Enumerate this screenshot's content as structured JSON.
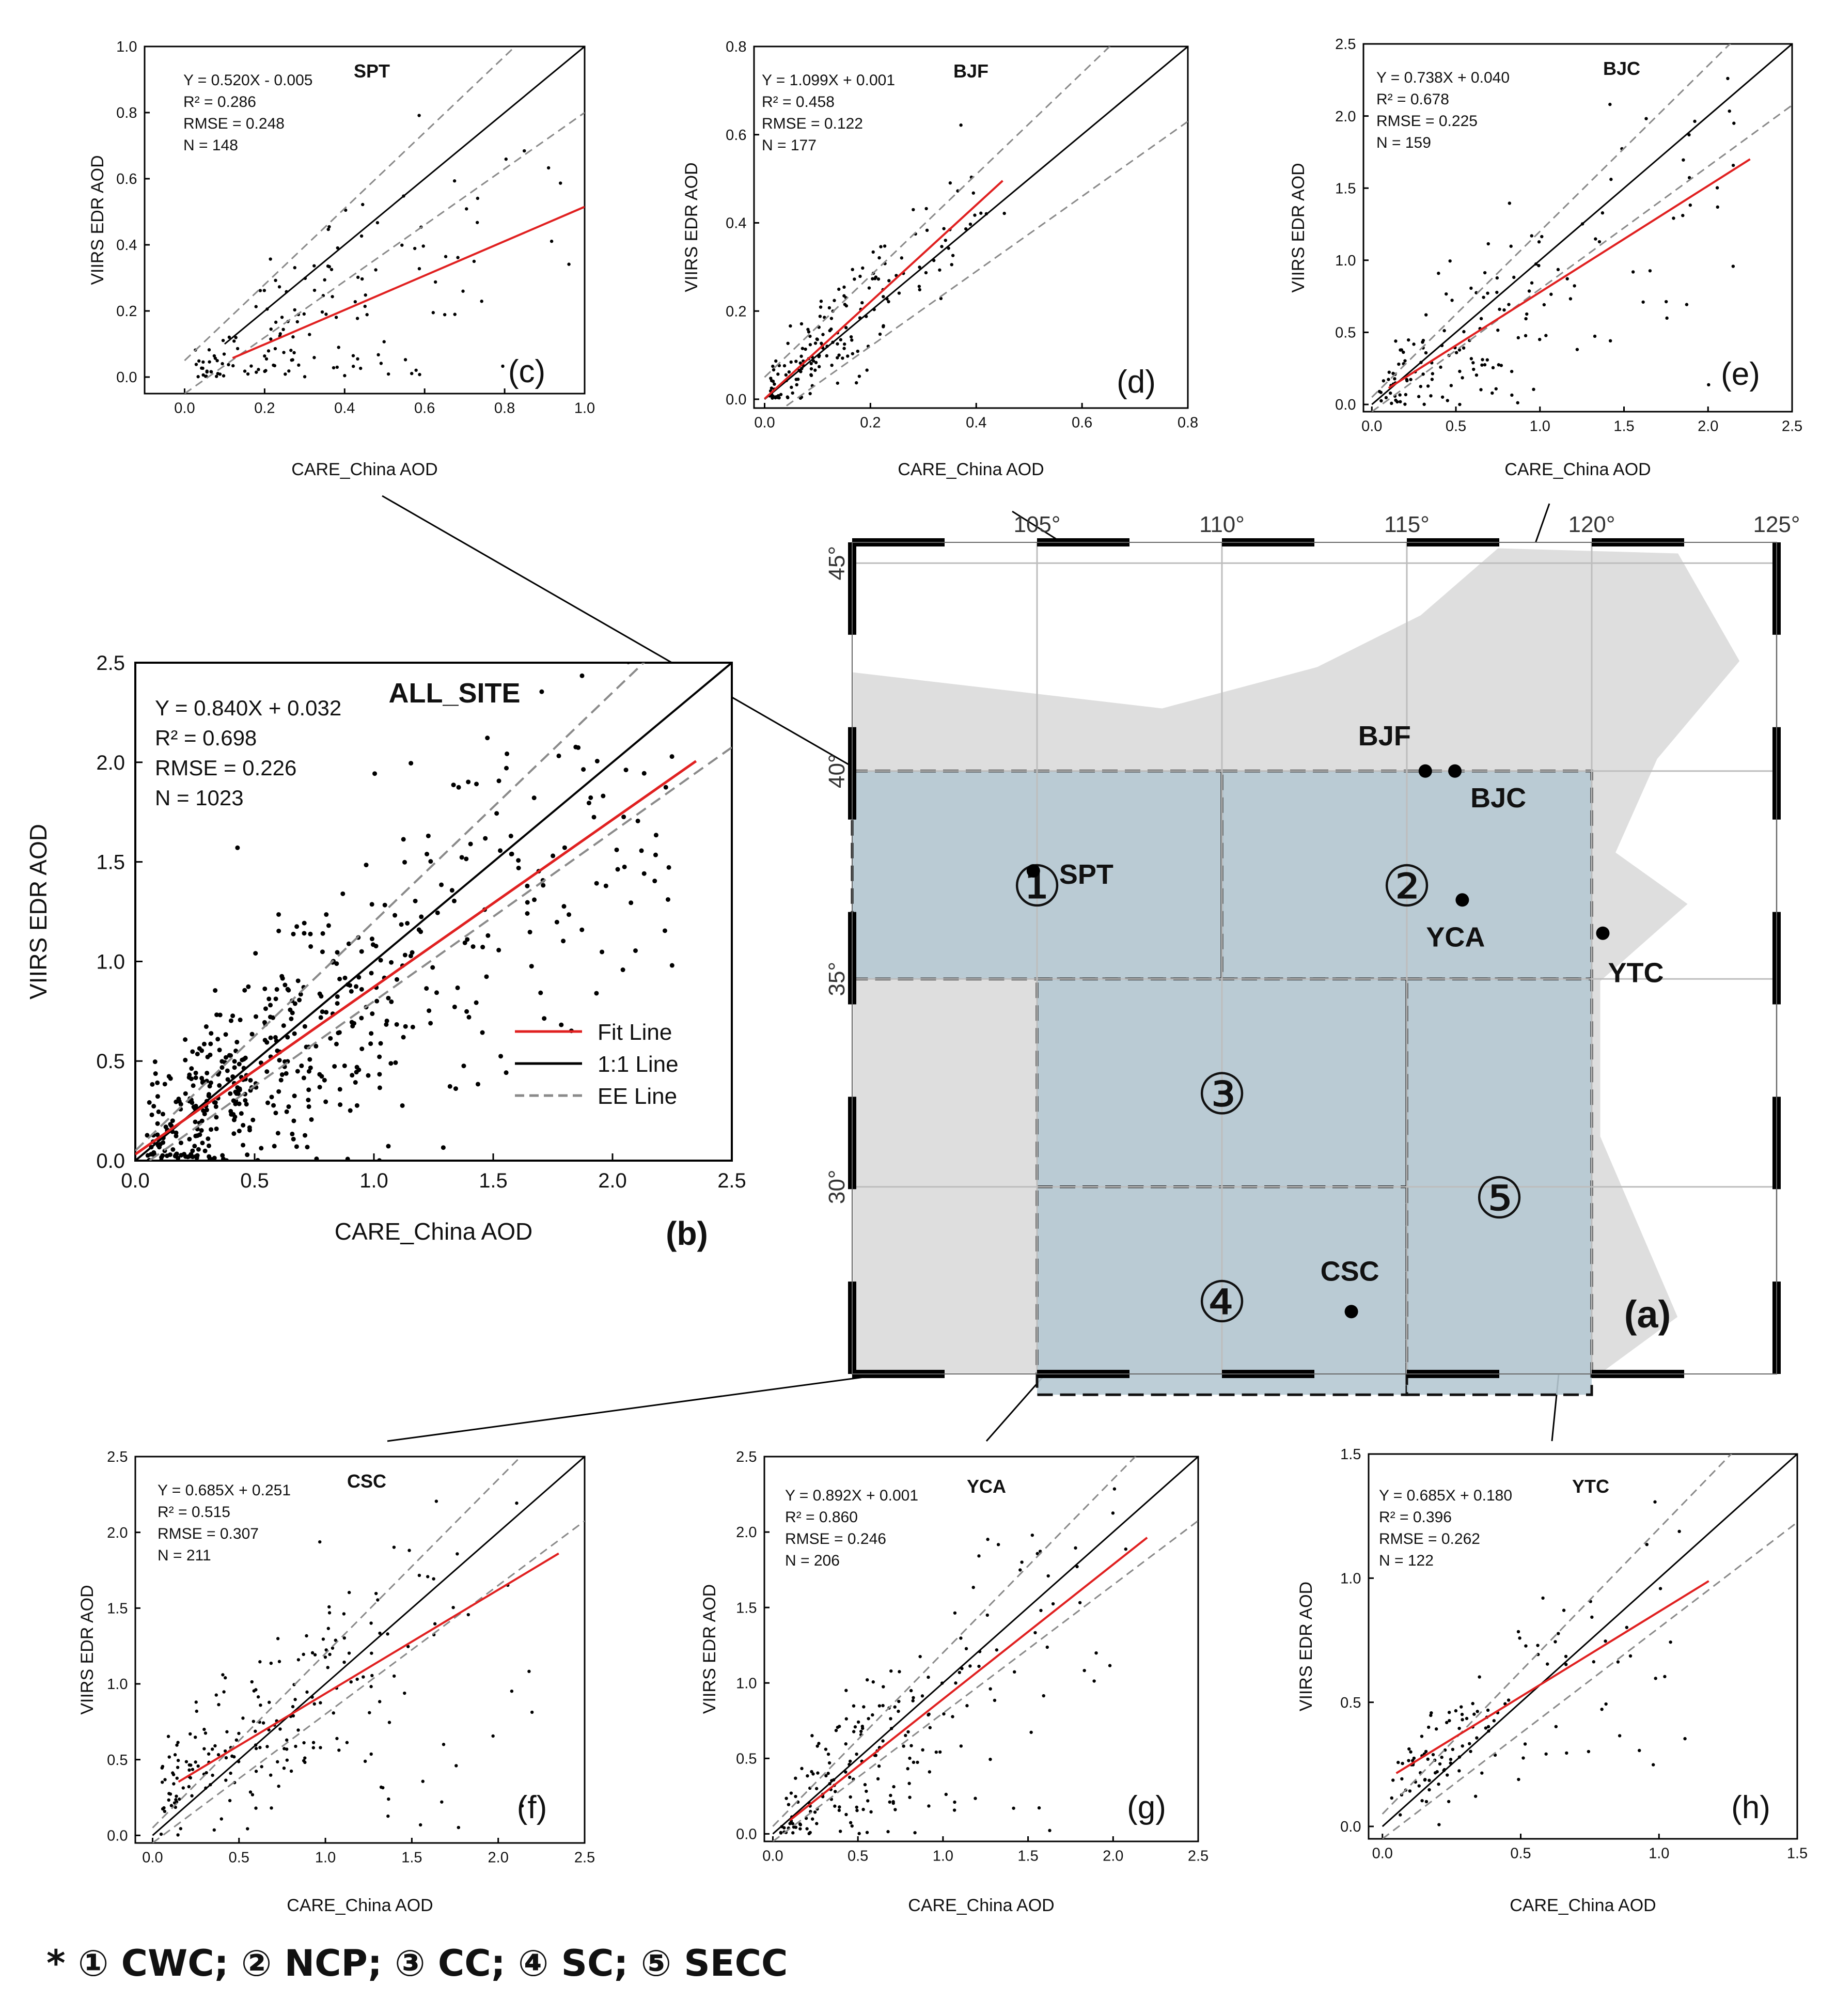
{
  "figure_caption_note": "* ① CWC; ② NCP; ③ CC; ④ SC; ⑤ SECC",
  "colors": {
    "fit_line": "#e02020",
    "one_to_one": "#000000",
    "ee_line": "#8a8a8a",
    "region_fill": "#b6c9d3",
    "land": "#dedede",
    "water": "#cfe3ec"
  },
  "chart_data": [
    {
      "id": "b",
      "type": "scatter",
      "site": "ALL_SITE",
      "panel_label": "(b)",
      "xlabel": "CARE_China AOD",
      "ylabel": "VIIRS EDR AOD",
      "xlim": [
        0,
        2.5
      ],
      "ylim": [
        0,
        2.5
      ],
      "xticks": [
        "0.0",
        "0.5",
        "1.0",
        "1.5",
        "2.0",
        "2.5"
      ],
      "yticks": [
        "0.0",
        "0.5",
        "1.0",
        "1.5",
        "2.0",
        "2.5"
      ],
      "tick_values": [
        0,
        0.5,
        1.0,
        1.5,
        2.0,
        2.5
      ],
      "stats": [
        "Y = 0.840X + 0.032",
        "R² = 0.698",
        "RMSE = 0.226",
        "N = 1023"
      ],
      "fit": {
        "slope": 0.84,
        "intercept": 0.032,
        "x_range": [
          0.0,
          2.35
        ]
      },
      "n": 1023,
      "legend": [
        "Fit Line",
        "1:1 Line",
        "EE Line"
      ],
      "samples": 520
    },
    {
      "id": "c",
      "type": "scatter",
      "site": "SPT",
      "panel_label": "(c)",
      "xlabel": "CARE_China AOD",
      "ylabel": "VIIRS EDR AOD",
      "xlim": [
        -0.1,
        1.0
      ],
      "ylim": [
        -0.05,
        1.0
      ],
      "xticks": [
        "0.0",
        "0.2",
        "0.4",
        "0.6",
        "0.8",
        "1.0"
      ],
      "yticks": [
        "0.0",
        "0.2",
        "0.4",
        "0.6",
        "0.8",
        "1.0"
      ],
      "tick_values": [
        0,
        0.2,
        0.4,
        0.6,
        0.8,
        1.0
      ],
      "stats": [
        "Y = 0.520X - 0.005",
        "R² = 0.286",
        "RMSE = 0.248",
        "N = 148"
      ],
      "fit": {
        "slope": 0.52,
        "intercept": -0.005,
        "x_range": [
          0.12,
          1.0
        ]
      },
      "one_to_one_x": [
        0.1,
        1.0
      ],
      "n": 148,
      "samples": 148
    },
    {
      "id": "d",
      "type": "scatter",
      "site": "BJF",
      "panel_label": "(d)",
      "xlabel": "CARE_China AOD",
      "ylabel": "VIIRS EDR AOD",
      "xlim": [
        -0.02,
        0.8
      ],
      "ylim": [
        -0.02,
        0.8
      ],
      "xticks": [
        "0.0",
        "0.2",
        "0.4",
        "0.6",
        "0.8"
      ],
      "yticks": [
        "0.0",
        "0.2",
        "0.4",
        "0.6",
        "0.8"
      ],
      "tick_values": [
        0,
        0.2,
        0.4,
        0.6,
        0.8
      ],
      "stats": [
        "Y = 1.099X + 0.001",
        "R² = 0.458",
        "RMSE = 0.122",
        "N = 177"
      ],
      "fit": {
        "slope": 1.099,
        "intercept": 0.001,
        "x_range": [
          0.0,
          0.45
        ]
      },
      "n": 177,
      "samples": 177
    },
    {
      "id": "e",
      "type": "scatter",
      "site": "BJC",
      "panel_label": "(e)",
      "xlabel": "CARE_China AOD",
      "ylabel": "VIIRS EDR AOD",
      "xlim": [
        -0.05,
        2.5
      ],
      "ylim": [
        -0.05,
        2.5
      ],
      "xticks": [
        "0.0",
        "0.5",
        "1.0",
        "1.5",
        "2.0",
        "2.5"
      ],
      "yticks": [
        "0.0",
        "0.5",
        "1.0",
        "1.5",
        "2.0",
        "2.5"
      ],
      "tick_values": [
        0,
        0.5,
        1.0,
        1.5,
        2.0,
        2.5
      ],
      "stats": [
        "Y = 0.738X + 0.040",
        "R² = 0.678",
        "RMSE = 0.225",
        "N = 159"
      ],
      "fit": {
        "slope": 0.738,
        "intercept": 0.04,
        "x_range": [
          0.1,
          2.25
        ]
      },
      "n": 159,
      "samples": 159
    },
    {
      "id": "f",
      "type": "scatter",
      "site": "CSC",
      "panel_label": "(f)",
      "xlabel": "CARE_China AOD",
      "ylabel": "VIIRS EDR AOD",
      "xlim": [
        -0.1,
        2.5
      ],
      "ylim": [
        -0.05,
        2.5
      ],
      "xticks": [
        "0.0",
        "0.5",
        "1.0",
        "1.5",
        "2.0",
        "2.5"
      ],
      "yticks": [
        "0.0",
        "0.5",
        "1.0",
        "1.5",
        "2.0",
        "2.5"
      ],
      "tick_values": [
        0,
        0.5,
        1.0,
        1.5,
        2.0,
        2.5
      ],
      "stats": [
        "Y = 0.685X + 0.251",
        "R² = 0.515",
        "RMSE = 0.307",
        "N = 211"
      ],
      "fit": {
        "slope": 0.685,
        "intercept": 0.251,
        "x_range": [
          0.15,
          2.35
        ]
      },
      "n": 211,
      "samples": 211
    },
    {
      "id": "g",
      "type": "scatter",
      "site": "YCA",
      "panel_label": "(g)",
      "xlabel": "CARE_China AOD",
      "ylabel": "VIIRS EDR AOD",
      "xlim": [
        -0.05,
        2.5
      ],
      "ylim": [
        -0.05,
        2.5
      ],
      "xticks": [
        "0.0",
        "0.5",
        "1.0",
        "1.5",
        "2.0",
        "2.5"
      ],
      "yticks": [
        "0.0",
        "0.5",
        "1.0",
        "1.5",
        "2.0",
        "2.5"
      ],
      "tick_values": [
        0,
        0.5,
        1.0,
        1.5,
        2.0,
        2.5
      ],
      "stats": [
        "Y = 0.892X + 0.001",
        "R² = 0.860",
        "RMSE = 0.246",
        "N = 206"
      ],
      "fit": {
        "slope": 0.892,
        "intercept": 0.001,
        "x_range": [
          0.1,
          2.2
        ]
      },
      "n": 206,
      "samples": 206
    },
    {
      "id": "h",
      "type": "scatter",
      "site": "YTC",
      "panel_label": "(h)",
      "xlabel": "CARE_China AOD",
      "ylabel": "VIIRS EDR AOD",
      "xlim": [
        -0.05,
        1.5
      ],
      "ylim": [
        -0.05,
        1.5
      ],
      "xticks": [
        "0.0",
        "0.5",
        "1.0",
        "1.5"
      ],
      "yticks": [
        "0.0",
        "0.5",
        "1.0",
        "1.5"
      ],
      "tick_values": [
        0,
        0.5,
        1.0,
        1.5
      ],
      "stats": [
        "Y = 0.685X + 0.180",
        "R² = 0.396",
        "RMSE = 0.262",
        "N = 122"
      ],
      "fit": {
        "slope": 0.685,
        "intercept": 0.18,
        "x_range": [
          0.05,
          1.18
        ]
      },
      "n": 122,
      "samples": 122
    }
  ],
  "map": {
    "panel_label": "(a)",
    "lon_labels": [
      "105°",
      "110°",
      "115°",
      "120°",
      "125°"
    ],
    "lat_labels": [
      "45°",
      "40°",
      "35°",
      "30°"
    ],
    "lon_range": [
      100,
      125
    ],
    "lat_range": [
      25.5,
      45.5
    ],
    "regions": [
      {
        "label": "①",
        "lon": [
          100,
          110
        ],
        "lat": [
          35,
          40
        ]
      },
      {
        "label": "②",
        "lon": [
          110,
          120
        ],
        "lat": [
          35,
          40
        ]
      },
      {
        "label": "③",
        "lon": [
          105,
          115
        ],
        "lat": [
          30,
          35
        ]
      },
      {
        "label": "④",
        "lon": [
          105,
          115
        ],
        "lat": [
          25,
          30
        ]
      },
      {
        "label": "⑤",
        "lon": [
          115,
          120
        ],
        "lat": [
          25,
          35
        ]
      }
    ],
    "sites": [
      {
        "name": "SPT",
        "lon": 104.9,
        "lat": 37.6
      },
      {
        "name": "BJF",
        "lon": 115.5,
        "lat": 40.0
      },
      {
        "name": "BJC",
        "lon": 116.3,
        "lat": 40.0
      },
      {
        "name": "YCA",
        "lon": 116.5,
        "lat": 36.9
      },
      {
        "name": "YTC",
        "lon": 120.3,
        "lat": 36.1
      },
      {
        "name": "CSC",
        "lon": 113.5,
        "lat": 27.0
      }
    ]
  }
}
